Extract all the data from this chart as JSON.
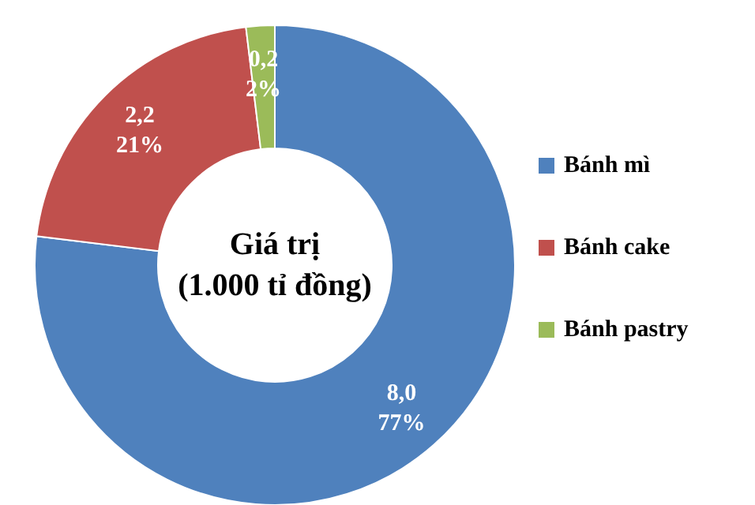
{
  "chart_data": {
    "type": "donut",
    "title": "Giá trị\n(1.000 tỉ đồng)",
    "categories": [
      "Bánh mì",
      "Bánh cake",
      "Bánh pastry"
    ],
    "values": [
      8.0,
      2.2,
      0.2
    ],
    "colors": [
      "#4f81bd",
      "#c0504d",
      "#9bbb59"
    ],
    "value_labels": [
      "8,0\n77%",
      "2,2\n21%",
      "0,2\n2%"
    ],
    "legend": "right"
  }
}
